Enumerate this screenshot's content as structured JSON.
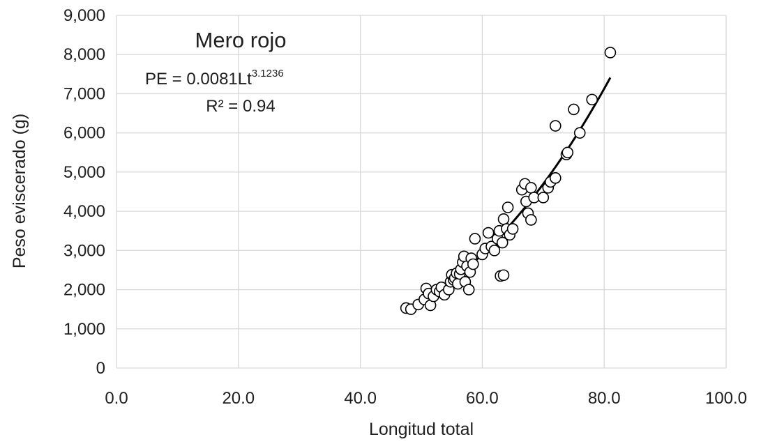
{
  "chart_data": {
    "type": "scatter",
    "xlabel": "Longitud total",
    "ylabel": "Peso eviscerado (g)",
    "xlim": [
      0,
      100
    ],
    "ylim": [
      0,
      9000
    ],
    "x_ticks": [
      0,
      20,
      40,
      60,
      80,
      100
    ],
    "y_ticks": [
      0,
      1000,
      2000,
      3000,
      4000,
      5000,
      6000,
      7000,
      8000,
      9000
    ],
    "x_tick_labels": [
      "0.0",
      "20.0",
      "40.0",
      "60.0",
      "80.0",
      "100.0"
    ],
    "y_tick_labels": [
      "0",
      "1,000",
      "2,000",
      "3,000",
      "4,000",
      "5,000",
      "6,000",
      "7,000",
      "8,000",
      "9,000"
    ],
    "grid": true,
    "annotation": {
      "title": "Mero rojo",
      "equation_base": "PE = 0.0081Lt",
      "equation_exponent": "3.1236",
      "r_squared": "R² = 0.94"
    },
    "trendline": {
      "type": "power",
      "a": 0.0081,
      "b": 3.1236,
      "x_range": [
        48,
        81
      ]
    },
    "series": [
      {
        "points": [
          [
            47.5,
            1530
          ],
          [
            48.3,
            1500
          ],
          [
            49.5,
            1620
          ],
          [
            50.5,
            1750
          ],
          [
            50.8,
            2030
          ],
          [
            51.2,
            1900
          ],
          [
            51.5,
            1600
          ],
          [
            52.0,
            1830
          ],
          [
            52.5,
            2000
          ],
          [
            53.0,
            1950
          ],
          [
            53.3,
            2060
          ],
          [
            53.8,
            1870
          ],
          [
            54.5,
            2000
          ],
          [
            54.8,
            2200
          ],
          [
            55.0,
            2380
          ],
          [
            55.3,
            2250
          ],
          [
            55.5,
            2300
          ],
          [
            55.8,
            2420
          ],
          [
            56.0,
            2150
          ],
          [
            56.3,
            2400
          ],
          [
            56.5,
            2520
          ],
          [
            56.8,
            2700
          ],
          [
            57.0,
            2850
          ],
          [
            57.2,
            2200
          ],
          [
            57.5,
            2600
          ],
          [
            57.8,
            2000
          ],
          [
            58.0,
            2450
          ],
          [
            58.2,
            2800
          ],
          [
            58.5,
            2650
          ],
          [
            58.8,
            3300
          ],
          [
            60.0,
            2900
          ],
          [
            60.5,
            3050
          ],
          [
            61.0,
            3450
          ],
          [
            61.5,
            3100
          ],
          [
            62.0,
            3000
          ],
          [
            62.5,
            3300
          ],
          [
            62.8,
            3500
          ],
          [
            63.0,
            2350
          ],
          [
            63.3,
            3200
          ],
          [
            63.5,
            2370
          ],
          [
            63.5,
            3800
          ],
          [
            64.0,
            3550
          ],
          [
            64.2,
            4100
          ],
          [
            64.5,
            3400
          ],
          [
            65.0,
            3550
          ],
          [
            66.5,
            4550
          ],
          [
            67.0,
            4700
          ],
          [
            67.2,
            4250
          ],
          [
            67.5,
            3950
          ],
          [
            68.0,
            4600
          ],
          [
            68.0,
            3780
          ],
          [
            68.5,
            4350
          ],
          [
            70.0,
            4350
          ],
          [
            70.8,
            4600
          ],
          [
            71.2,
            4750
          ],
          [
            72.0,
            4850
          ],
          [
            72.0,
            6180
          ],
          [
            73.8,
            5450
          ],
          [
            74.0,
            5500
          ],
          [
            75.0,
            6600
          ],
          [
            76.0,
            6000
          ],
          [
            78.0,
            6850
          ],
          [
            81.0,
            8050
          ]
        ]
      }
    ]
  }
}
